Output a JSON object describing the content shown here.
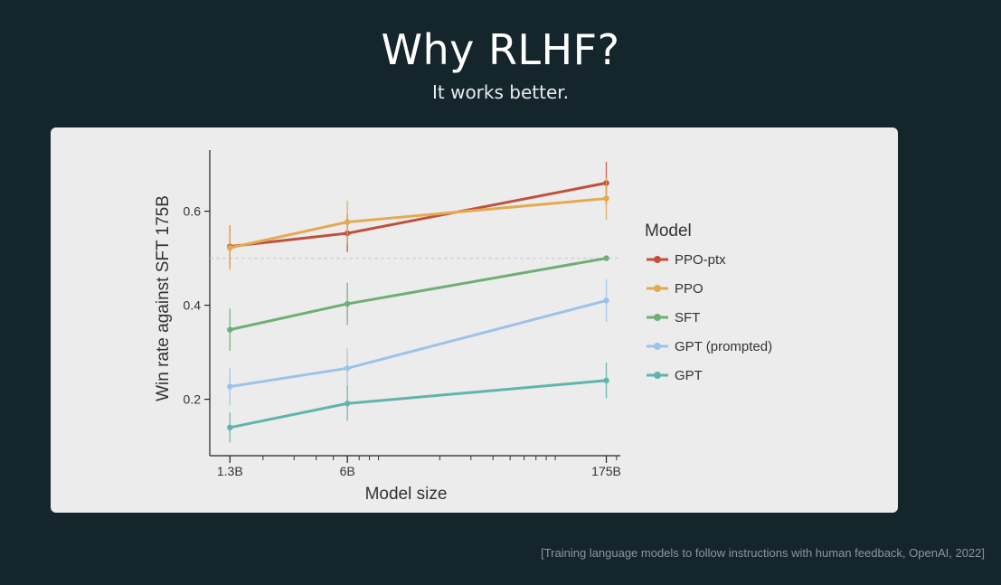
{
  "slide": {
    "title": "Why RLHF?",
    "subtitle": "It works better.",
    "citation": "[Training language models to follow instructions with human feedback, OpenAI, 2022]"
  },
  "chart_data": {
    "type": "line",
    "xlabel": "Model size",
    "ylabel": "Win rate against SFT 175B",
    "x_scale": "log",
    "categories": [
      "1.3B",
      "6B",
      "175B"
    ],
    "x": [
      1.3,
      6,
      175
    ],
    "xlim": [
      1.0,
      210
    ],
    "ylim": [
      0.08,
      0.73
    ],
    "yticks": [
      0.2,
      0.4,
      0.6
    ],
    "ytick_labels": [
      "0.2",
      "0.4",
      "0.6"
    ],
    "reference_line": 0.5,
    "grid": false,
    "legend": {
      "title": "Model",
      "placement": "right"
    },
    "series": [
      {
        "name": "PPO-ptx",
        "color": "#c0503e",
        "values": [
          0.525,
          0.553,
          0.66
        ],
        "err": [
          0.045,
          0.04,
          0.045
        ]
      },
      {
        "name": "PPO",
        "color": "#e3aa52",
        "values": [
          0.522,
          0.577,
          0.627
        ],
        "err": [
          0.048,
          0.045,
          0.045
        ]
      },
      {
        "name": "SFT",
        "color": "#6fae75",
        "values": [
          0.348,
          0.403,
          0.5
        ],
        "err": [
          0.045,
          0.045,
          0.0
        ]
      },
      {
        "name": "GPT (prompted)",
        "color": "#9cc3e8",
        "values": [
          0.227,
          0.266,
          0.41
        ],
        "err": [
          0.04,
          0.042,
          0.045
        ]
      },
      {
        "name": "GPT",
        "color": "#5fb5ac",
        "values": [
          0.14,
          0.191,
          0.24
        ],
        "err": [
          0.032,
          0.037,
          0.038
        ]
      }
    ]
  }
}
